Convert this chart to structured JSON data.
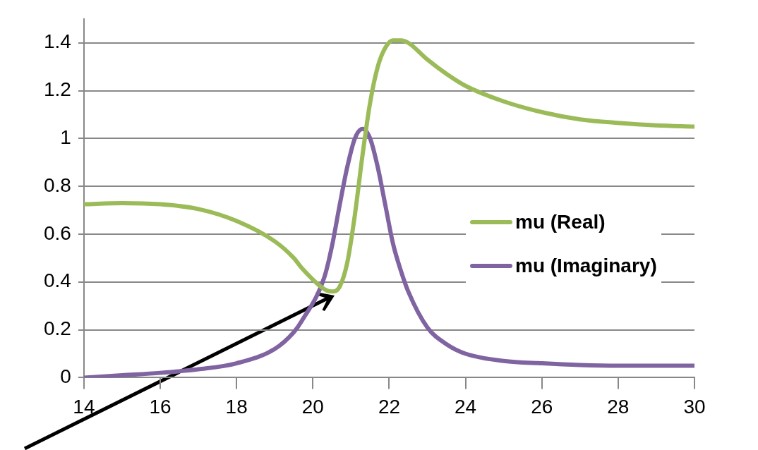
{
  "chart_data": {
    "type": "line",
    "x": [
      14,
      15,
      16,
      17,
      18,
      19,
      19.5,
      19.7,
      20.3,
      20.5,
      20.7,
      20.9,
      21.1,
      21.3,
      21.5,
      21.7,
      21.9,
      22.1,
      22.3,
      22.5,
      23,
      23.5,
      24,
      25,
      26,
      27,
      28,
      29,
      30
    ],
    "series": [
      {
        "name": "mu (Real)",
        "color": "#9bbb59",
        "values": [
          0.725,
          0.73,
          0.725,
          0.705,
          0.655,
          0.57,
          0.5,
          0.46,
          0.37,
          0.36,
          0.38,
          0.48,
          0.68,
          0.93,
          1.15,
          1.3,
          1.38,
          1.41,
          1.41,
          1.4,
          1.33,
          1.27,
          1.22,
          1.155,
          1.11,
          1.08,
          1.065,
          1.055,
          1.05
        ]
      },
      {
        "name": "mu (Imaginary)",
        "color": "#8064a2",
        "values": [
          0,
          0.01,
          0.02,
          0.035,
          0.06,
          0.12,
          0.19,
          0.235,
          0.42,
          0.55,
          0.72,
          0.88,
          1.0,
          1.04,
          1.0,
          0.88,
          0.72,
          0.56,
          0.45,
          0.36,
          0.21,
          0.14,
          0.1,
          0.07,
          0.06,
          0.053,
          0.05,
          0.05,
          0.05
        ]
      }
    ],
    "xlim": [
      14,
      30
    ],
    "xticks": [
      14,
      16,
      18,
      20,
      22,
      24,
      26,
      28,
      30
    ],
    "ylim": [
      0,
      1.5
    ],
    "yticks": [
      0,
      0.2,
      0.4,
      0.6,
      0.8,
      1,
      1.2,
      1.4
    ],
    "grid": "y",
    "legend": "right",
    "marker": "none",
    "line_style": "solid"
  }
}
